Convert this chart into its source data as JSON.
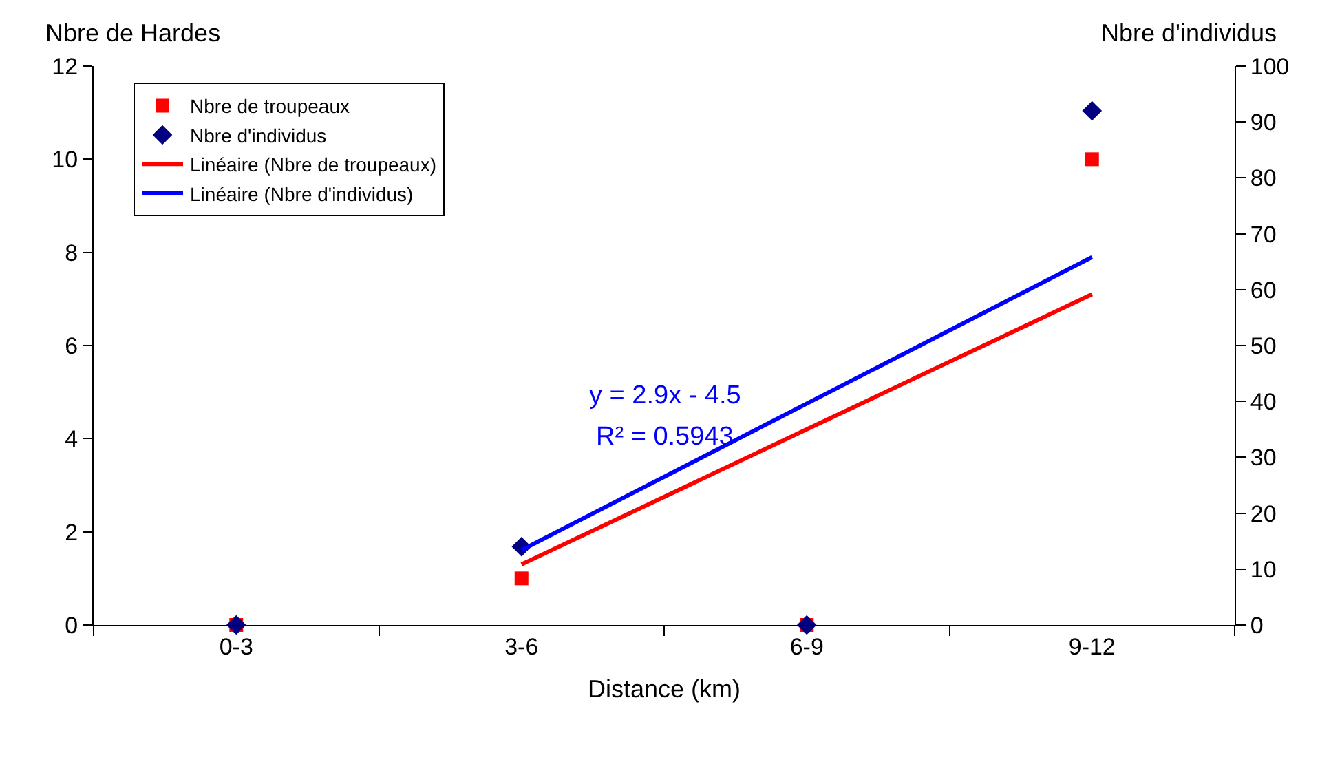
{
  "chart_data": {
    "type": "scatter",
    "xlabel": "Distance (km)",
    "ylabel": "Nbre de Hardes",
    "y2label": "Nbre d'individus",
    "categories": [
      "0-3",
      "3-6",
      "6-9",
      "9-12"
    ],
    "series": [
      {
        "name": "Nbre de troupeaux",
        "color": "#ff0000",
        "marker": "square",
        "values": [
          0,
          1,
          0,
          10
        ]
      },
      {
        "name": "Nbre d'individus",
        "color": "#000080",
        "marker": "diamond",
        "axis": "y2",
        "values": [
          0,
          14,
          0,
          92
        ]
      },
      {
        "name": "Linéaire (Nbre de troupeaux)",
        "type": "line",
        "color": "#ff0000",
        "marker": "none",
        "line_style": "solid",
        "values": [
          null,
          1.3,
          4.2,
          7.1
        ]
      },
      {
        "name": "Linéaire (Nbre d'individus)",
        "type": "line",
        "color": "#0000ff",
        "marker": "none",
        "line_style": "solid",
        "axis": "y2",
        "values": [
          null,
          13.4,
          39.6,
          65.8
        ]
      }
    ],
    "ylim": [
      0,
      12
    ],
    "yticks": [
      0,
      2,
      4,
      6,
      8,
      10,
      12
    ],
    "y2lim": [
      0,
      100
    ],
    "y2ticks": [
      0,
      10,
      20,
      30,
      40,
      50,
      60,
      70,
      80,
      90,
      100
    ],
    "annotations": [
      "y = 2.9x - 4.5",
      "R² = 0.5943"
    ],
    "grid": false,
    "legend": "top left"
  }
}
